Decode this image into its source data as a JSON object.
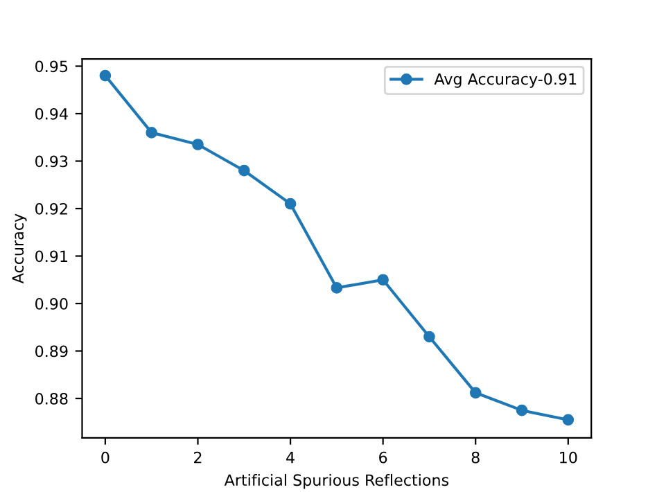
{
  "chart_data": {
    "type": "line",
    "xlabel": "Artificial Spurious Reflections",
    "ylabel": "Accuracy",
    "x": [
      0,
      1,
      2,
      3,
      4,
      5,
      6,
      7,
      8,
      9,
      10
    ],
    "series": [
      {
        "name": "Avg Accuracy-0.91",
        "color": "#1f77b4",
        "values": [
          0.948,
          0.936,
          0.9335,
          0.928,
          0.921,
          0.9033,
          0.905,
          0.893,
          0.8812,
          0.8775,
          0.8755
        ]
      }
    ],
    "xlim": [
      -0.5,
      10.5
    ],
    "xticks": [
      0,
      2,
      4,
      6,
      8,
      10
    ],
    "ylim": [
      0.8717,
      0.9515
    ],
    "yticks": [
      {
        "value": 0.88,
        "label": "0.88"
      },
      {
        "value": 0.89,
        "label": "0.89"
      },
      {
        "value": 0.9,
        "label": "0.90"
      },
      {
        "value": 0.91,
        "label": "0.91"
      },
      {
        "value": 0.92,
        "label": "0.92"
      },
      {
        "value": 0.93,
        "label": "0.93"
      },
      {
        "value": 0.94,
        "label": "0.94"
      },
      {
        "value": 0.95,
        "label": "0.95"
      }
    ],
    "marker": "circle",
    "line_style": "solid",
    "legend": "top right",
    "grid": false
  }
}
